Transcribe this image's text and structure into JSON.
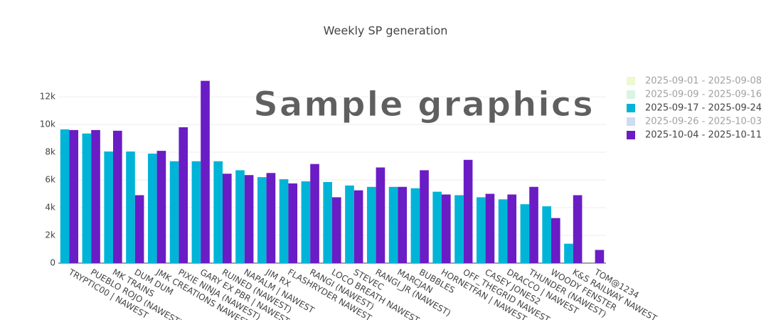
{
  "chart_data": {
    "type": "bar",
    "title": "Weekly SP generation",
    "annotations": [
      "Sample graphics"
    ],
    "categories": [
      "TRYPTIC00 | NAWEST",
      "PUEBLO ROJO (NAWEST)",
      "MK TRAINS",
      "DUM DUM",
      "JMK CREATIONS NAWEST",
      "PIXIE NINJA (NAWEST)",
      "GARY EX PBR | NAWEST",
      "RUINED (NAWEST)",
      "NAPALM | NAWEST",
      "JIM RX",
      "FLASHRYDER NAWEST",
      "RANGI (NAWEST)",
      "LOCO BREATH NAWEST",
      "STEVEC",
      "RANGI_JR (NAWEST)",
      "MARCJAN",
      "BUBBLES",
      "HORNETFAN | NAWEST",
      "OFF_THEGRID NAWEST",
      "CASEY JONES2",
      "DRACCO | NAWEST",
      "THUNDER (NAWEST)",
      "WOODY FENSTER",
      "K&S RAILWAY NAWEST",
      "TOM@1234"
    ],
    "series": [
      {
        "name": "2025-09-01 - 2025-09-08",
        "color": "#dcf5a0",
        "visible": false
      },
      {
        "name": "2025-09-09 - 2025-09-16",
        "color": "#b3ecc8",
        "visible": false
      },
      {
        "name": "2025-09-17 - 2025-09-24",
        "color": "#00b4d8",
        "visible": true,
        "values": [
          9650,
          9350,
          8050,
          8050,
          7900,
          7350,
          7350,
          7350,
          6700,
          6200,
          6050,
          5900,
          5850,
          5600,
          5500,
          5500,
          5400,
          5150,
          4900,
          4750,
          4600,
          4250,
          4100,
          1400,
          null
        ]
      },
      {
        "name": "2025-09-26 - 2025-10-03",
        "color": "#9cb8e8",
        "visible": false
      },
      {
        "name": "2025-10-04 - 2025-10-11",
        "color": "#6a1cc5",
        "visible": true,
        "values": [
          9600,
          9600,
          9550,
          4900,
          8100,
          9800,
          13150,
          6450,
          6350,
          6500,
          5750,
          7150,
          4750,
          5250,
          6900,
          5500,
          6700,
          4950,
          7450,
          5000,
          4950,
          5500,
          3250,
          4900,
          950
        ]
      }
    ],
    "ylim": [
      0,
      13800
    ],
    "yticks": [
      0,
      {
        "value": 2000,
        "label": "2k"
      },
      {
        "value": 4000,
        "label": "4k"
      },
      {
        "value": 6000,
        "label": "6k"
      },
      {
        "value": 8000,
        "label": "8k"
      },
      {
        "value": 10000,
        "label": "10k"
      },
      {
        "value": 12000,
        "label": "12k"
      }
    ],
    "grid": true,
    "legend": "right"
  }
}
